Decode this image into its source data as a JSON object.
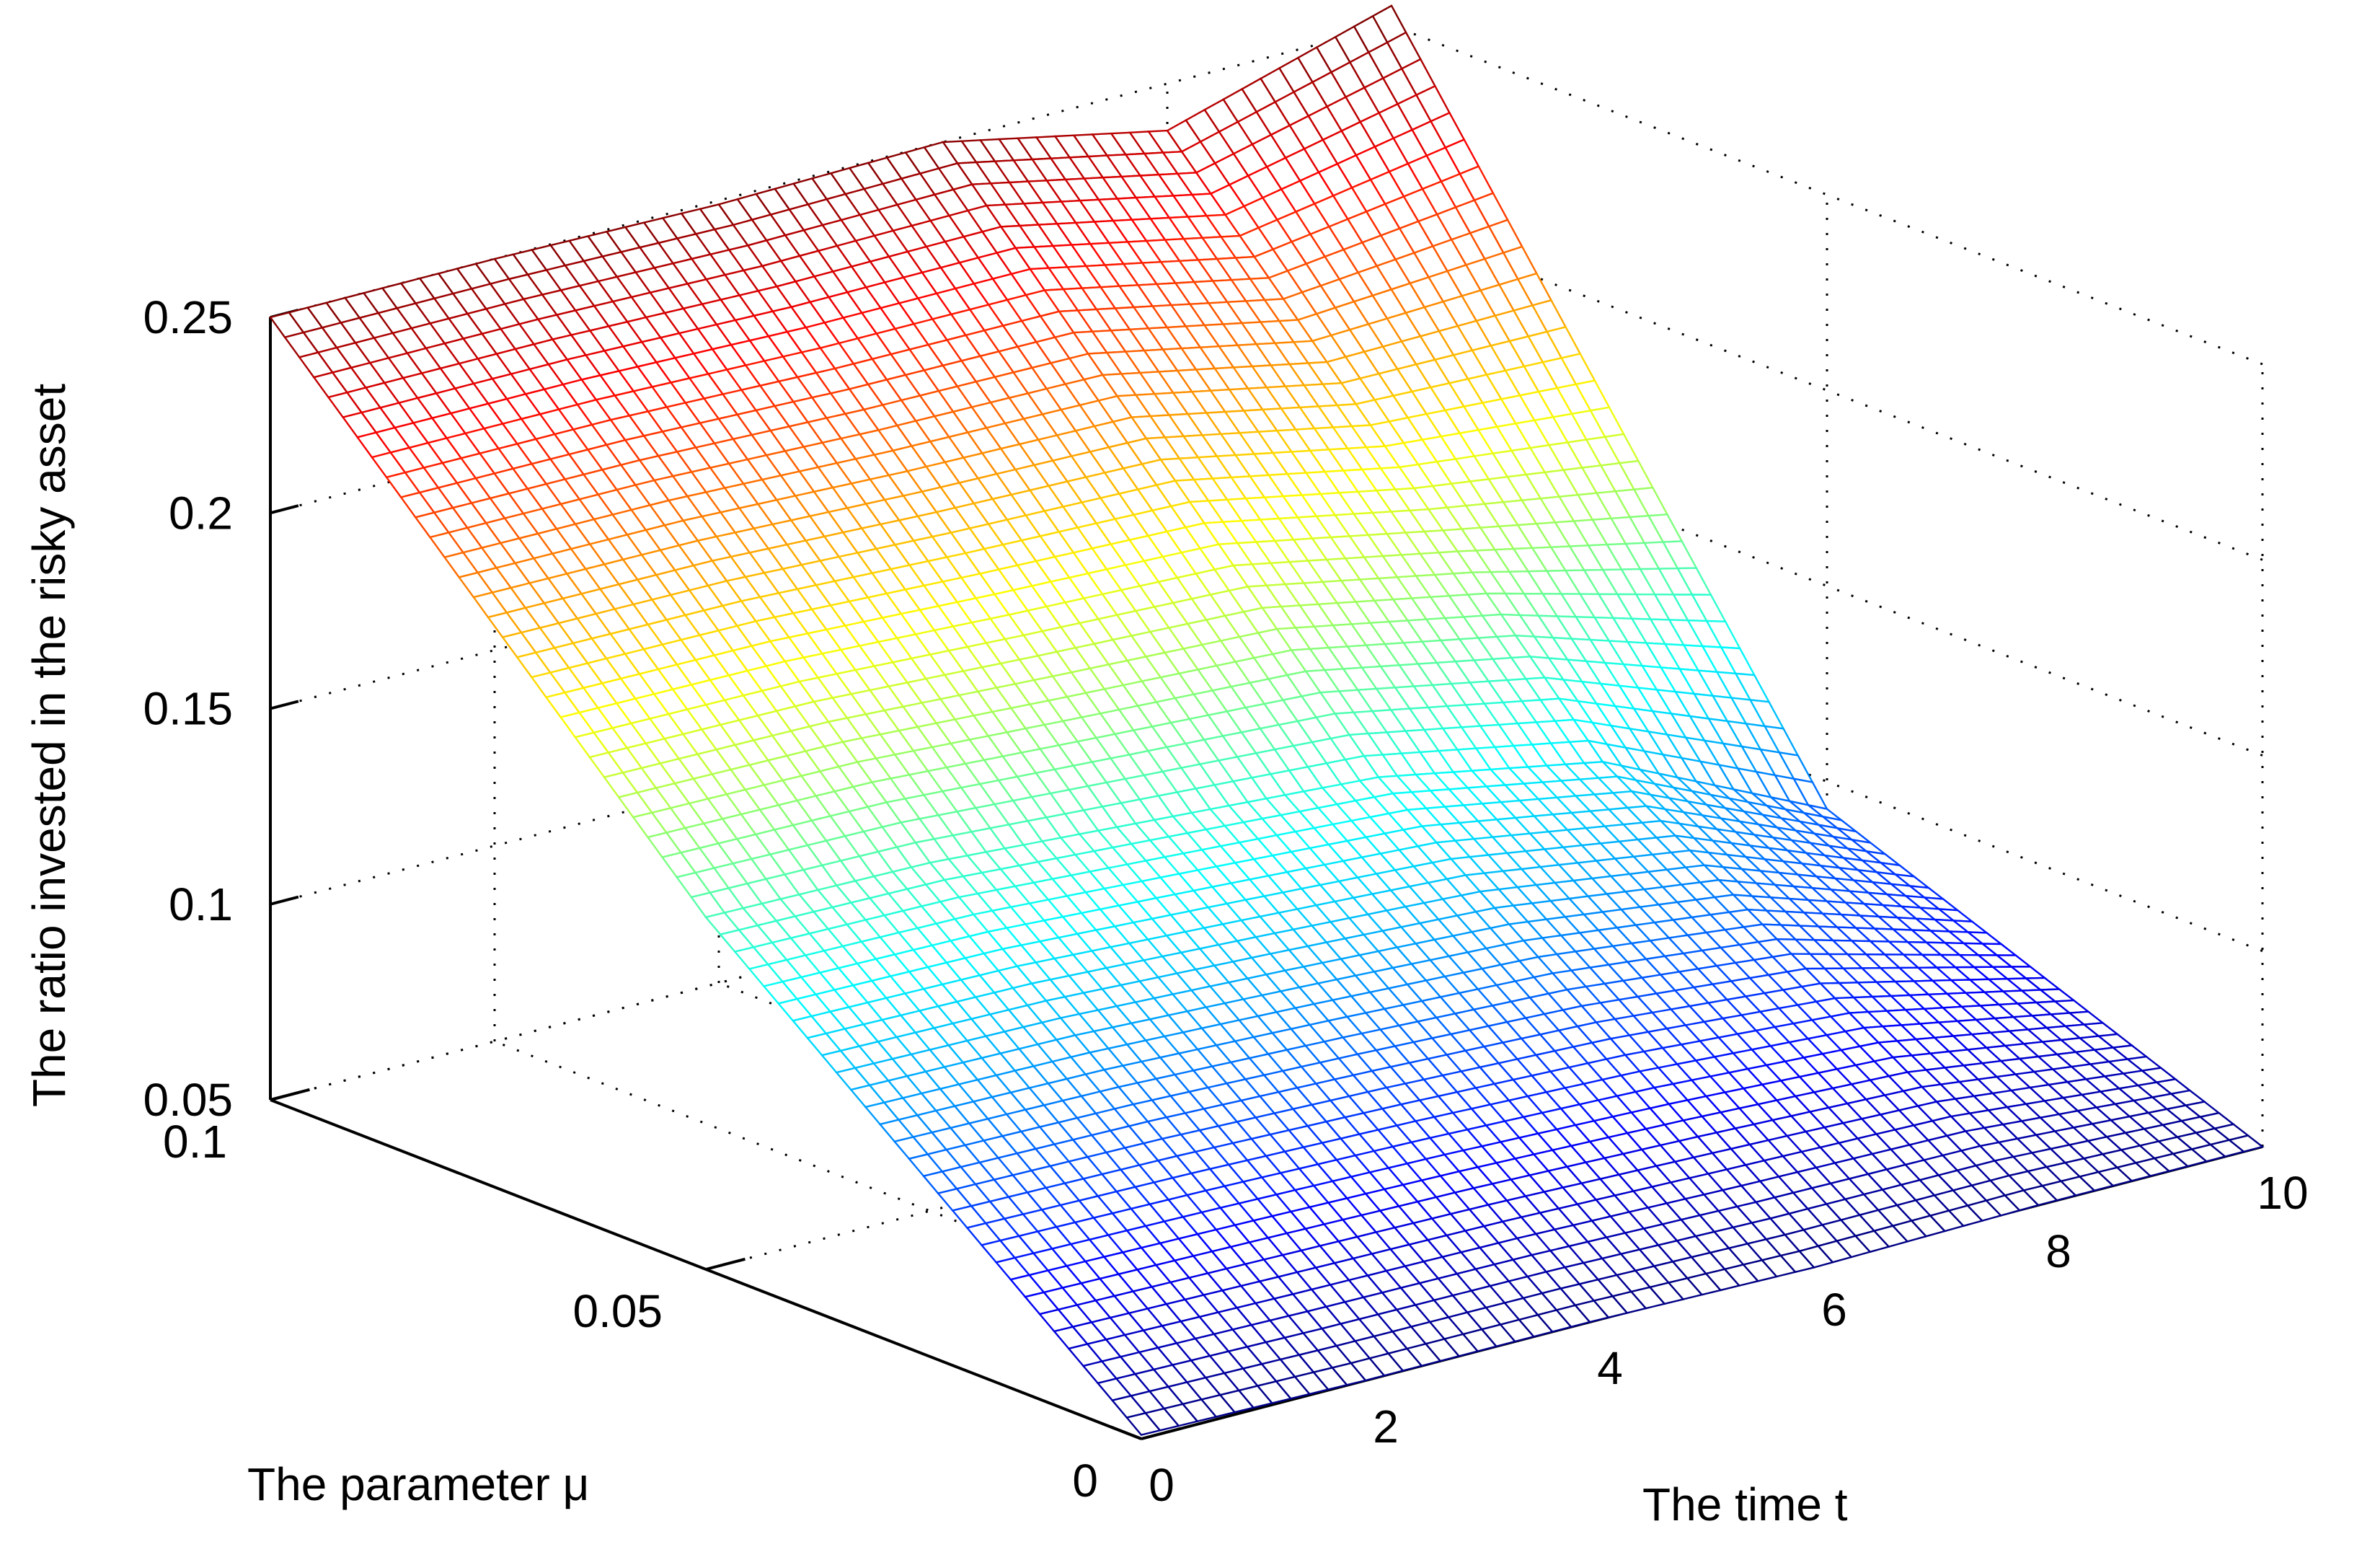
{
  "chart_data": {
    "type": "surface",
    "title": "",
    "xlabel": "The time t",
    "ylabel": "The parameter μ",
    "zlabel": "The ratio invested in the risky asset",
    "xlim": [
      0,
      10
    ],
    "ylim": [
      0,
      0.1
    ],
    "zlim": [
      0.05,
      0.25
    ],
    "x_ticks": [
      "0",
      "2",
      "4",
      "6",
      "8",
      "10"
    ],
    "y_ticks": [
      "0",
      "0.05",
      "0.1"
    ],
    "z_ticks": [
      "0.05",
      "0.1",
      "0.15",
      "0.2",
      "0.25"
    ],
    "grid": true,
    "colormap": "jet",
    "surface_samples": {
      "t": [
        0,
        2,
        4,
        6,
        8,
        10
      ],
      "mu": [
        0,
        0.05,
        0.1
      ],
      "z": [
        [
          0.051,
          0.14,
          0.25
        ],
        [
          0.05,
          0.139,
          0.25
        ],
        [
          0.05,
          0.135,
          0.249
        ],
        [
          0.049,
          0.131,
          0.25
        ],
        [
          0.05,
          0.12,
          0.238
        ],
        [
          0.05,
          0.093,
          0.255
        ]
      ]
    }
  }
}
